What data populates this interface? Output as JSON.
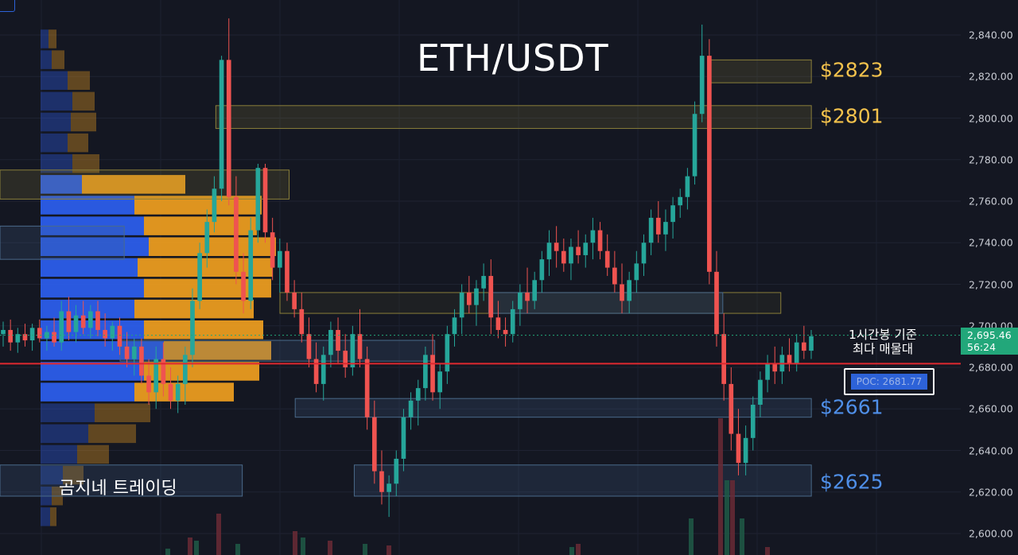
{
  "chart_data": {
    "type": "candlestick",
    "title": "ETH/USDT",
    "y_axis": {
      "ticks": [
        "2,840.00",
        "2,820.00",
        "2,800.00",
        "2,780.00",
        "2,760.00",
        "2,740.00",
        "2,720.00",
        "2,700.00",
        "2,680.00",
        "2,660.00",
        "2,640.00",
        "2,620.00",
        "2,600.00"
      ],
      "tick_values": [
        2840,
        2820,
        2800,
        2780,
        2760,
        2740,
        2720,
        2700,
        2680,
        2660,
        2640,
        2620,
        2600
      ],
      "range": [
        2590,
        2853
      ]
    },
    "current_price": {
      "value": "2,695.46",
      "timer": "56:24",
      "price": 2695.46,
      "color": "#22a77a"
    },
    "poc": {
      "label": "POC: 2681.77",
      "price": 2681.77,
      "line_color": "#e0292f"
    },
    "annotation": {
      "line1": "1시간봉 기준",
      "line2": "최다 매물대"
    },
    "watermark": "곰지네 트레이딩",
    "levels": [
      {
        "label": "$2823",
        "price": 2823,
        "color": "#f4c24c"
      },
      {
        "label": "$2801",
        "price": 2801,
        "color": "#f4c24c"
      },
      {
        "label": "$2661",
        "price": 2661,
        "color": "#4f8fe8"
      },
      {
        "label": "$2625",
        "price": 2625,
        "color": "#4f8fe8"
      }
    ],
    "zones": [
      {
        "price_top": 2828,
        "price_bottom": 2817,
        "start": 0.696,
        "end": 0.797,
        "kind": "supply"
      },
      {
        "price_top": 2806,
        "price_bottom": 2795,
        "start": 0.212,
        "end": 0.797,
        "kind": "supply"
      },
      {
        "price_top": 2775,
        "price_bottom": 2761,
        "start": 0.0,
        "end": 0.284,
        "kind": "supply"
      },
      {
        "price_top": 2748,
        "price_bottom": 2732,
        "start": 0.0,
        "end": 0.122,
        "kind": "demand"
      },
      {
        "price_top": 2716,
        "price_bottom": 2706,
        "start": 0.275,
        "end": 0.767,
        "kind": "supply-dark"
      },
      {
        "price_top": 2716,
        "price_bottom": 2706,
        "start": 0.48,
        "end": 0.71,
        "kind": "demand"
      },
      {
        "price_top": 2693,
        "price_bottom": 2683,
        "start": 0.118,
        "end": 0.427,
        "kind": "demand"
      },
      {
        "price_top": 2665,
        "price_bottom": 2656,
        "start": 0.29,
        "end": 0.797,
        "kind": "demand"
      },
      {
        "price_top": 2633,
        "price_bottom": 2618,
        "start": 0.0,
        "end": 0.238,
        "kind": "demand"
      },
      {
        "price_top": 2633,
        "price_bottom": 2618,
        "start": 0.348,
        "end": 0.797,
        "kind": "demand"
      }
    ],
    "volume_profile": {
      "bins": [
        {
          "price": 2838,
          "buy": 10,
          "sell": 10
        },
        {
          "price": 2828,
          "buy": 14,
          "sell": 16
        },
        {
          "price": 2818,
          "buy": 34,
          "sell": 28
        },
        {
          "price": 2808,
          "buy": 40,
          "sell": 28
        },
        {
          "price": 2798,
          "buy": 38,
          "sell": 32
        },
        {
          "price": 2788,
          "buy": 34,
          "sell": 26
        },
        {
          "price": 2778,
          "buy": 40,
          "sell": 34
        },
        {
          "price": 2768,
          "buy": 52,
          "sell": 130
        },
        {
          "price": 2758,
          "buy": 118,
          "sell": 160
        },
        {
          "price": 2748,
          "buy": 130,
          "sell": 142
        },
        {
          "price": 2738,
          "buy": 136,
          "sell": 160
        },
        {
          "price": 2728,
          "buy": 122,
          "sell": 170
        },
        {
          "price": 2718,
          "buy": 130,
          "sell": 160
        },
        {
          "price": 2708,
          "buy": 118,
          "sell": 150
        },
        {
          "price": 2698,
          "buy": 130,
          "sell": 150
        },
        {
          "price": 2688,
          "buy": 155,
          "sell": 135
        },
        {
          "price": 2678,
          "buy": 130,
          "sell": 145
        },
        {
          "price": 2668,
          "buy": 118,
          "sell": 125
        },
        {
          "price": 2658,
          "buy": 68,
          "sell": 70
        },
        {
          "price": 2648,
          "buy": 60,
          "sell": 60
        },
        {
          "price": 2638,
          "buy": 46,
          "sell": 40
        },
        {
          "price": 2628,
          "buy": 28,
          "sell": 26
        },
        {
          "price": 2618,
          "buy": 14,
          "sell": 14
        },
        {
          "price": 2608,
          "buy": 12,
          "sell": 8
        }
      ],
      "buy_color": "#2d5ff0",
      "sell_color": "#f0a020"
    },
    "candles": [
      [
        2696,
        2702,
        2690,
        2698
      ],
      [
        2698,
        2703,
        2688,
        2692
      ],
      [
        2692,
        2699,
        2687,
        2696
      ],
      [
        2696,
        2701,
        2690,
        2693
      ],
      [
        2693,
        2701,
        2688,
        2699
      ],
      [
        2699,
        2703,
        2692,
        2694
      ],
      [
        2694,
        2700,
        2688,
        2697
      ],
      [
        2697,
        2704,
        2690,
        2692
      ],
      [
        2692,
        2712,
        2688,
        2707
      ],
      [
        2707,
        2714,
        2693,
        2697
      ],
      [
        2697,
        2710,
        2692,
        2705
      ],
      [
        2705,
        2712,
        2696,
        2699
      ],
      [
        2699,
        2710,
        2694,
        2707
      ],
      [
        2707,
        2712,
        2695,
        2698
      ],
      [
        2698,
        2706,
        2690,
        2694
      ],
      [
        2694,
        2702,
        2688,
        2700
      ],
      [
        2700,
        2704,
        2686,
        2690
      ],
      [
        2690,
        2697,
        2680,
        2684
      ],
      [
        2684,
        2694,
        2676,
        2690
      ],
      [
        2690,
        2694,
        2672,
        2676
      ],
      [
        2676,
        2684,
        2662,
        2668
      ],
      [
        2668,
        2690,
        2660,
        2684
      ],
      [
        2684,
        2692,
        2666,
        2672
      ],
      [
        2672,
        2680,
        2660,
        2664
      ],
      [
        2664,
        2676,
        2658,
        2672
      ],
      [
        2672,
        2690,
        2662,
        2686
      ],
      [
        2686,
        2718,
        2680,
        2712
      ],
      [
        2712,
        2740,
        2708,
        2735
      ],
      [
        2735,
        2756,
        2728,
        2750
      ],
      [
        2750,
        2772,
        2745,
        2766
      ],
      [
        2766,
        2830,
        2760,
        2828
      ],
      [
        2828,
        2848,
        2758,
        2762
      ],
      [
        2762,
        2772,
        2720,
        2726
      ],
      [
        2726,
        2735,
        2706,
        2712
      ],
      [
        2712,
        2752,
        2708,
        2746
      ],
      [
        2746,
        2778,
        2740,
        2776
      ],
      [
        2776,
        2778,
        2740,
        2745
      ],
      [
        2745,
        2752,
        2722,
        2728
      ],
      [
        2728,
        2742,
        2716,
        2736
      ],
      [
        2736,
        2740,
        2712,
        2716
      ],
      [
        2716,
        2722,
        2704,
        2708
      ],
      [
        2708,
        2716,
        2692,
        2696
      ],
      [
        2696,
        2704,
        2680,
        2684
      ],
      [
        2684,
        2692,
        2668,
        2672
      ],
      [
        2672,
        2690,
        2664,
        2686
      ],
      [
        2686,
        2702,
        2680,
        2698
      ],
      [
        2698,
        2704,
        2682,
        2688
      ],
      [
        2688,
        2696,
        2675,
        2680
      ],
      [
        2680,
        2700,
        2676,
        2696
      ],
      [
        2696,
        2708,
        2680,
        2684
      ],
      [
        2684,
        2690,
        2650,
        2656
      ],
      [
        2656,
        2664,
        2624,
        2630
      ],
      [
        2630,
        2640,
        2614,
        2620
      ],
      [
        2620,
        2628,
        2608,
        2624
      ],
      [
        2624,
        2640,
        2618,
        2636
      ],
      [
        2636,
        2660,
        2630,
        2656
      ],
      [
        2656,
        2668,
        2650,
        2664
      ],
      [
        2664,
        2674,
        2652,
        2670
      ],
      [
        2670,
        2690,
        2664,
        2686
      ],
      [
        2686,
        2696,
        2664,
        2668
      ],
      [
        2668,
        2682,
        2660,
        2678
      ],
      [
        2678,
        2700,
        2672,
        2696
      ],
      [
        2696,
        2708,
        2690,
        2704
      ],
      [
        2704,
        2720,
        2696,
        2716
      ],
      [
        2716,
        2724,
        2706,
        2710
      ],
      [
        2710,
        2722,
        2700,
        2718
      ],
      [
        2718,
        2730,
        2712,
        2724
      ],
      [
        2724,
        2732,
        2696,
        2704
      ],
      [
        2704,
        2712,
        2694,
        2698
      ],
      [
        2698,
        2704,
        2690,
        2696
      ],
      [
        2696,
        2712,
        2692,
        2708
      ],
      [
        2708,
        2720,
        2700,
        2716
      ],
      [
        2716,
        2728,
        2706,
        2712
      ],
      [
        2712,
        2726,
        2708,
        2722
      ],
      [
        2722,
        2736,
        2716,
        2732
      ],
      [
        2732,
        2746,
        2724,
        2740
      ],
      [
        2740,
        2748,
        2728,
        2736
      ],
      [
        2736,
        2742,
        2726,
        2730
      ],
      [
        2730,
        2742,
        2722,
        2738
      ],
      [
        2738,
        2746,
        2730,
        2734
      ],
      [
        2734,
        2744,
        2728,
        2740
      ],
      [
        2740,
        2752,
        2732,
        2746
      ],
      [
        2746,
        2750,
        2732,
        2736
      ],
      [
        2736,
        2744,
        2724,
        2728
      ],
      [
        2728,
        2736,
        2716,
        2720
      ],
      [
        2720,
        2730,
        2706,
        2712
      ],
      [
        2712,
        2726,
        2706,
        2722
      ],
      [
        2722,
        2736,
        2716,
        2730
      ],
      [
        2730,
        2744,
        2724,
        2740
      ],
      [
        2740,
        2756,
        2734,
        2752
      ],
      [
        2752,
        2760,
        2740,
        2744
      ],
      [
        2744,
        2756,
        2736,
        2750
      ],
      [
        2750,
        2762,
        2742,
        2758
      ],
      [
        2758,
        2766,
        2752,
        2762
      ],
      [
        2762,
        2776,
        2756,
        2772
      ],
      [
        2772,
        2808,
        2768,
        2802
      ],
      [
        2802,
        2845,
        2798,
        2830
      ],
      [
        2830,
        2838,
        2720,
        2726
      ],
      [
        2726,
        2736,
        2690,
        2696
      ],
      [
        2696,
        2706,
        2664,
        2672
      ],
      [
        2672,
        2680,
        2640,
        2648
      ],
      [
        2648,
        2660,
        2628,
        2634
      ],
      [
        2634,
        2652,
        2628,
        2646
      ],
      [
        2646,
        2666,
        2640,
        2662
      ],
      [
        2662,
        2678,
        2656,
        2674
      ],
      [
        2674,
        2686,
        2668,
        2682
      ],
      [
        2682,
        2690,
        2672,
        2678
      ],
      [
        2678,
        2690,
        2672,
        2686
      ],
      [
        2686,
        2694,
        2678,
        2682
      ],
      [
        2682,
        2696,
        2678,
        2692
      ],
      [
        2692,
        2700,
        2684,
        2688
      ],
      [
        2688,
        2698,
        2684,
        2695
      ]
    ]
  }
}
